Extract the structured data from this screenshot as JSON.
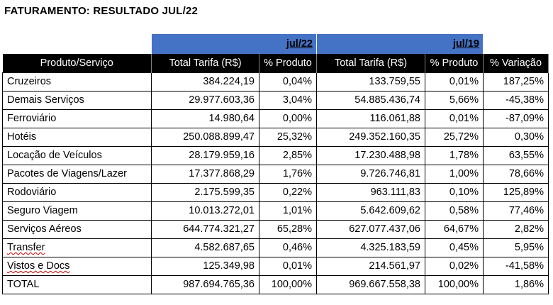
{
  "title": "FATURAMENTO: RESULTADO JUL/22",
  "periods": [
    "jul/22",
    "jul/19"
  ],
  "headers": [
    "Produto/Serviço",
    "Total Tarifa (R$)",
    "% Produto",
    "Total Tarifa (R$)",
    "% Produto",
    "% Variação"
  ],
  "rows": [
    {
      "name": "Cruzeiros",
      "t22": "384.224,19",
      "p22": "0,04%",
      "t19": "133.759,55",
      "p19": "0,01%",
      "var": "187,25%"
    },
    {
      "name": "Demais Serviços",
      "t22": "29.977.603,36",
      "p22": "3,04%",
      "t19": "54.885.436,74",
      "p19": "5,66%",
      "var": "-45,38%"
    },
    {
      "name": "Ferroviário",
      "t22": "14.980,64",
      "p22": "0,00%",
      "t19": "116.061,88",
      "p19": "0,01%",
      "var": "-87,09%"
    },
    {
      "name": "Hotéis",
      "t22": "250.088.899,47",
      "p22": "25,32%",
      "t19": "249.352.160,35",
      "p19": "25,72%",
      "var": "0,30%"
    },
    {
      "name": "Locação de Veículos",
      "t22": "28.179.959,16",
      "p22": "2,85%",
      "t19": "17.230.488,98",
      "p19": "1,78%",
      "var": "63,55%"
    },
    {
      "name": "Pacotes de Viagens/Lazer",
      "t22": "17.377.868,29",
      "p22": "1,76%",
      "t19": "9.726.746,81",
      "p19": "1,00%",
      "var": "78,66%"
    },
    {
      "name": "Rodoviário",
      "t22": "2.175.599,35",
      "p22": "0,22%",
      "t19": "963.111,83",
      "p19": "0,10%",
      "var": "125,89%"
    },
    {
      "name": "Seguro Viagem",
      "t22": "10.013.272,01",
      "p22": "1,01%",
      "t19": "5.642.609,62",
      "p19": "0,58%",
      "var": "77,46%"
    },
    {
      "name": "Serviços Aéreos",
      "t22": "644.774.321,27",
      "p22": "65,28%",
      "t19": "627.077.437,06",
      "p19": "64,67%",
      "var": "2,82%"
    },
    {
      "name": "Transfer",
      "t22": "4.582.687,65",
      "p22": "0,46%",
      "t19": "4.325.183,59",
      "p19": "0,45%",
      "var": "5,95%",
      "spell": true
    },
    {
      "name": "Vistos e Docs",
      "t22": "125.349,98",
      "p22": "0,01%",
      "t19": "214.561,97",
      "p19": "0,02%",
      "var": "-41,58%",
      "spell": true
    },
    {
      "name": "TOTAL",
      "t22": "987.694.765,36",
      "p22": "100,00%",
      "t19": "969.667.558,38",
      "p19": "100,00%",
      "var": "1,86%"
    }
  ]
}
